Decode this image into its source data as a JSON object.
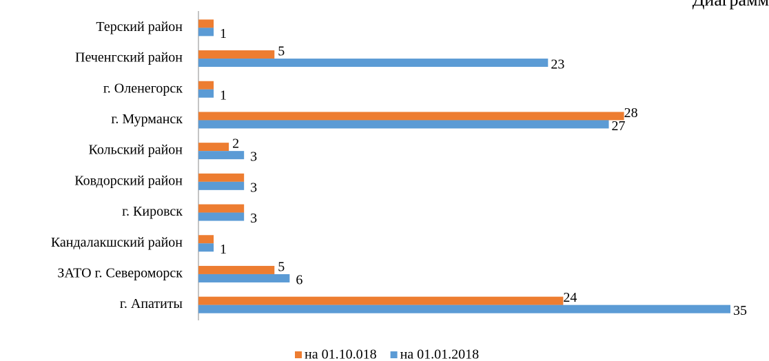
{
  "chart_data": {
    "type": "hbar",
    "title": "Диаграмм",
    "categories": [
      "Терский район",
      "Печенгский район",
      "г. Оленегорск",
      "г. Мурманск",
      "Кольский район",
      "Ковдорский район",
      "г. Кировск",
      "Кандалакшский район",
      "ЗАТО г. Североморск",
      "г. Апатиты"
    ],
    "series": [
      {
        "name": "на 01.10.018",
        "color": "#ed7d31",
        "values": [
          1,
          5,
          1,
          28,
          2,
          3,
          3,
          1,
          5,
          24
        ]
      },
      {
        "name": "на 01.01.2018",
        "color": "#5b9bd5",
        "values": [
          1,
          23,
          1,
          27,
          3,
          3,
          3,
          1,
          6,
          35
        ]
      }
    ],
    "legend": "bottom"
  }
}
